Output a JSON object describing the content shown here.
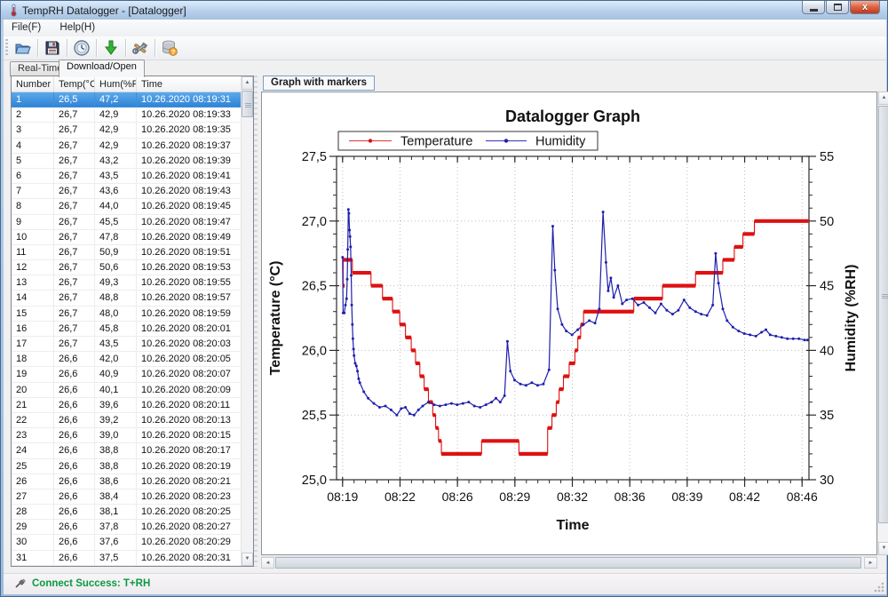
{
  "window": {
    "title": "TempRH Datalogger - [Datalogger]"
  },
  "menu": {
    "items": [
      "File(F)",
      "Help(H)"
    ]
  },
  "toolbar": {
    "buttons": [
      "open-file",
      "save",
      "clock",
      "download",
      "tools",
      "database-help"
    ]
  },
  "tabs": [
    {
      "label": "Real-Time",
      "active": false
    },
    {
      "label": "Download/Open",
      "active": true
    }
  ],
  "table": {
    "columns": [
      "Number",
      "Temp(°C)",
      "Hum(%RH)",
      "Time"
    ],
    "selected_row": 1,
    "rows": [
      [
        "1",
        "26,5",
        "47,2",
        "10.26.2020 08:19:31"
      ],
      [
        "2",
        "26,7",
        "42,9",
        "10.26.2020 08:19:33"
      ],
      [
        "3",
        "26,7",
        "42,9",
        "10.26.2020 08:19:35"
      ],
      [
        "4",
        "26,7",
        "42,9",
        "10.26.2020 08:19:37"
      ],
      [
        "5",
        "26,7",
        "43,2",
        "10.26.2020 08:19:39"
      ],
      [
        "6",
        "26,7",
        "43,5",
        "10.26.2020 08:19:41"
      ],
      [
        "7",
        "26,7",
        "43,6",
        "10.26.2020 08:19:43"
      ],
      [
        "8",
        "26,7",
        "44,0",
        "10.26.2020 08:19:45"
      ],
      [
        "9",
        "26,7",
        "45,5",
        "10.26.2020 08:19:47"
      ],
      [
        "10",
        "26,7",
        "47,8",
        "10.26.2020 08:19:49"
      ],
      [
        "11",
        "26,7",
        "50,9",
        "10.26.2020 08:19:51"
      ],
      [
        "12",
        "26,7",
        "50,6",
        "10.26.2020 08:19:53"
      ],
      [
        "13",
        "26,7",
        "49,3",
        "10.26.2020 08:19:55"
      ],
      [
        "14",
        "26,7",
        "48,8",
        "10.26.2020 08:19:57"
      ],
      [
        "15",
        "26,7",
        "48,0",
        "10.26.2020 08:19:59"
      ],
      [
        "16",
        "26,7",
        "45,8",
        "10.26.2020 08:20:01"
      ],
      [
        "17",
        "26,7",
        "43,5",
        "10.26.2020 08:20:03"
      ],
      [
        "18",
        "26,6",
        "42,0",
        "10.26.2020 08:20:05"
      ],
      [
        "19",
        "26,6",
        "40,9",
        "10.26.2020 08:20:07"
      ],
      [
        "20",
        "26,6",
        "40,1",
        "10.26.2020 08:20:09"
      ],
      [
        "21",
        "26,6",
        "39,6",
        "10.26.2020 08:20:11"
      ],
      [
        "22",
        "26,6",
        "39,2",
        "10.26.2020 08:20:13"
      ],
      [
        "23",
        "26,6",
        "39,0",
        "10.26.2020 08:20:15"
      ],
      [
        "24",
        "26,6",
        "38,8",
        "10.26.2020 08:20:17"
      ],
      [
        "25",
        "26,6",
        "38,8",
        "10.26.2020 08:20:19"
      ],
      [
        "26",
        "26,6",
        "38,6",
        "10.26.2020 08:20:21"
      ],
      [
        "27",
        "26,6",
        "38,4",
        "10.26.2020 08:20:23"
      ],
      [
        "28",
        "26,6",
        "38,1",
        "10.26.2020 08:20:25"
      ],
      [
        "29",
        "26,6",
        "37,8",
        "10.26.2020 08:20:27"
      ],
      [
        "30",
        "26,6",
        "37,6",
        "10.26.2020 08:20:29"
      ],
      [
        "31",
        "26,6",
        "37,5",
        "10.26.2020 08:20:31"
      ]
    ]
  },
  "graph_panel": {
    "button_label": "Graph with markers"
  },
  "chart_data": {
    "type": "line",
    "title": "Datalogger Graph",
    "xlabel": "Time",
    "ylabel_left": "Temperature (°C)",
    "ylabel_right": "Humidity (%RH)",
    "grid": "dotted",
    "legend_position": "top",
    "y_left_range": [
      25.0,
      27.5
    ],
    "y_left_ticks": [
      "27,5",
      "27,0",
      "26,5",
      "26,0",
      "25,5",
      "25,0"
    ],
    "y_right_range": [
      30,
      55
    ],
    "y_right_ticks": [
      "55",
      "50",
      "45",
      "40",
      "35",
      "30"
    ],
    "x_range": [
      "08:19:10",
      "08:46:35"
    ],
    "x_ticks": [
      "08:19",
      "08:22",
      "08:26",
      "08:29",
      "08:32",
      "08:36",
      "08:39",
      "08:42",
      "08:46"
    ],
    "x_tick_times": [
      "08:19:31",
      "08:22:51",
      "08:26:11",
      "08:29:31",
      "08:32:51",
      "08:36:11",
      "08:39:31",
      "08:42:51",
      "08:46:11"
    ],
    "series": [
      {
        "name": "Temperature",
        "axis": "left",
        "mode": "step-after",
        "color": "#dd1111",
        "points": [
          [
            "08:19:31",
            26.5
          ],
          [
            "08:19:33",
            26.7
          ],
          [
            "08:20:05",
            26.6
          ],
          [
            "08:21:10",
            26.5
          ],
          [
            "08:21:50",
            26.4
          ],
          [
            "08:22:25",
            26.3
          ],
          [
            "08:22:50",
            26.2
          ],
          [
            "08:23:10",
            26.1
          ],
          [
            "08:23:30",
            26.0
          ],
          [
            "08:23:45",
            25.9
          ],
          [
            "08:24:00",
            25.8
          ],
          [
            "08:24:15",
            25.7
          ],
          [
            "08:24:30",
            25.6
          ],
          [
            "08:24:45",
            25.5
          ],
          [
            "08:24:55",
            25.4
          ],
          [
            "08:25:05",
            25.3
          ],
          [
            "08:25:15",
            25.2
          ],
          [
            "08:27:35",
            25.3
          ],
          [
            "08:29:45",
            25.2
          ],
          [
            "08:31:25",
            25.4
          ],
          [
            "08:31:40",
            25.5
          ],
          [
            "08:31:55",
            25.6
          ],
          [
            "08:32:05",
            25.7
          ],
          [
            "08:32:20",
            25.8
          ],
          [
            "08:32:40",
            25.9
          ],
          [
            "08:33:00",
            26.0
          ],
          [
            "08:33:10",
            26.1
          ],
          [
            "08:33:20",
            26.2
          ],
          [
            "08:33:30",
            26.3
          ],
          [
            "08:36:25",
            26.4
          ],
          [
            "08:38:05",
            26.5
          ],
          [
            "08:40:00",
            26.6
          ],
          [
            "08:41:35",
            26.7
          ],
          [
            "08:42:15",
            26.8
          ],
          [
            "08:42:45",
            26.9
          ],
          [
            "08:43:25",
            27.0
          ]
        ]
      },
      {
        "name": "Humidity",
        "axis": "right",
        "mode": "line",
        "color": "#1f1fae",
        "points": [
          [
            "08:19:31",
            47.2
          ],
          [
            "08:19:33",
            42.9
          ],
          [
            "08:19:37",
            42.9
          ],
          [
            "08:19:41",
            43.5
          ],
          [
            "08:19:45",
            44.0
          ],
          [
            "08:19:47",
            45.5
          ],
          [
            "08:19:49",
            47.8
          ],
          [
            "08:19:51",
            50.9
          ],
          [
            "08:19:53",
            50.6
          ],
          [
            "08:19:55",
            49.3
          ],
          [
            "08:19:57",
            48.8
          ],
          [
            "08:19:59",
            48.0
          ],
          [
            "08:20:01",
            45.8
          ],
          [
            "08:20:03",
            43.5
          ],
          [
            "08:20:05",
            42.0
          ],
          [
            "08:20:07",
            40.9
          ],
          [
            "08:20:09",
            40.1
          ],
          [
            "08:20:11",
            39.6
          ],
          [
            "08:20:15",
            39.0
          ],
          [
            "08:20:19",
            38.8
          ],
          [
            "08:20:23",
            38.4
          ],
          [
            "08:20:27",
            37.8
          ],
          [
            "08:20:31",
            37.5
          ],
          [
            "08:20:45",
            36.8
          ],
          [
            "08:21:00",
            36.3
          ],
          [
            "08:21:20",
            35.9
          ],
          [
            "08:21:40",
            35.6
          ],
          [
            "08:22:00",
            35.7
          ],
          [
            "08:22:20",
            35.4
          ],
          [
            "08:22:40",
            35.0
          ],
          [
            "08:22:55",
            35.5
          ],
          [
            "08:23:10",
            35.6
          ],
          [
            "08:23:25",
            35.1
          ],
          [
            "08:23:40",
            35.0
          ],
          [
            "08:23:55",
            35.4
          ],
          [
            "08:24:10",
            35.7
          ],
          [
            "08:24:30",
            36.0
          ],
          [
            "08:24:50",
            35.8
          ],
          [
            "08:25:10",
            35.7
          ],
          [
            "08:25:30",
            35.8
          ],
          [
            "08:25:50",
            35.9
          ],
          [
            "08:26:10",
            35.8
          ],
          [
            "08:26:30",
            35.9
          ],
          [
            "08:26:50",
            36.0
          ],
          [
            "08:27:10",
            35.7
          ],
          [
            "08:27:30",
            35.6
          ],
          [
            "08:27:50",
            35.8
          ],
          [
            "08:28:10",
            36.0
          ],
          [
            "08:28:25",
            36.3
          ],
          [
            "08:28:40",
            36.0
          ],
          [
            "08:28:55",
            36.5
          ],
          [
            "08:29:05",
            40.7
          ],
          [
            "08:29:15",
            38.4
          ],
          [
            "08:29:30",
            37.7
          ],
          [
            "08:29:50",
            37.4
          ],
          [
            "08:30:10",
            37.3
          ],
          [
            "08:30:30",
            37.5
          ],
          [
            "08:30:50",
            37.3
          ],
          [
            "08:31:10",
            37.4
          ],
          [
            "08:31:30",
            38.5
          ],
          [
            "08:31:43",
            49.6
          ],
          [
            "08:31:50",
            46.2
          ],
          [
            "08:32:00",
            43.2
          ],
          [
            "08:32:15",
            42.0
          ],
          [
            "08:32:30",
            41.5
          ],
          [
            "08:32:50",
            41.2
          ],
          [
            "08:33:10",
            41.6
          ],
          [
            "08:33:30",
            42.0
          ],
          [
            "08:33:50",
            42.3
          ],
          [
            "08:34:10",
            42.1
          ],
          [
            "08:34:25",
            43.2
          ],
          [
            "08:34:38",
            50.7
          ],
          [
            "08:34:48",
            46.8
          ],
          [
            "08:34:56",
            44.6
          ],
          [
            "08:35:05",
            45.6
          ],
          [
            "08:35:15",
            44.1
          ],
          [
            "08:35:30",
            45.0
          ],
          [
            "08:35:45",
            43.6
          ],
          [
            "08:36:00",
            43.9
          ],
          [
            "08:36:20",
            44.0
          ],
          [
            "08:36:40",
            43.5
          ],
          [
            "08:37:00",
            43.7
          ],
          [
            "08:37:20",
            43.3
          ],
          [
            "08:37:40",
            42.9
          ],
          [
            "08:38:00",
            43.6
          ],
          [
            "08:38:20",
            43.1
          ],
          [
            "08:38:40",
            42.8
          ],
          [
            "08:39:00",
            43.1
          ],
          [
            "08:39:20",
            43.9
          ],
          [
            "08:39:40",
            43.3
          ],
          [
            "08:40:00",
            43.0
          ],
          [
            "08:40:20",
            42.8
          ],
          [
            "08:40:40",
            42.7
          ],
          [
            "08:41:00",
            43.5
          ],
          [
            "08:41:10",
            47.5
          ],
          [
            "08:41:20",
            45.2
          ],
          [
            "08:41:35",
            43.2
          ],
          [
            "08:41:50",
            42.3
          ],
          [
            "08:42:10",
            41.8
          ],
          [
            "08:42:30",
            41.5
          ],
          [
            "08:42:50",
            41.3
          ],
          [
            "08:43:10",
            41.2
          ],
          [
            "08:43:30",
            41.1
          ],
          [
            "08:43:50",
            41.4
          ],
          [
            "08:44:05",
            41.6
          ],
          [
            "08:44:20",
            41.2
          ],
          [
            "08:44:40",
            41.1
          ],
          [
            "08:45:00",
            41.0
          ],
          [
            "08:45:20",
            40.9
          ],
          [
            "08:45:40",
            40.9
          ],
          [
            "08:46:00",
            40.9
          ],
          [
            "08:46:20",
            40.8
          ],
          [
            "08:46:30",
            40.8
          ]
        ]
      }
    ]
  },
  "status": {
    "text": "Connect Success: T+RH",
    "color": "#0a9a40"
  },
  "colors": {
    "selection": "#2e82d5",
    "temperature": "#dd1111",
    "humidity": "#1f1fae"
  }
}
